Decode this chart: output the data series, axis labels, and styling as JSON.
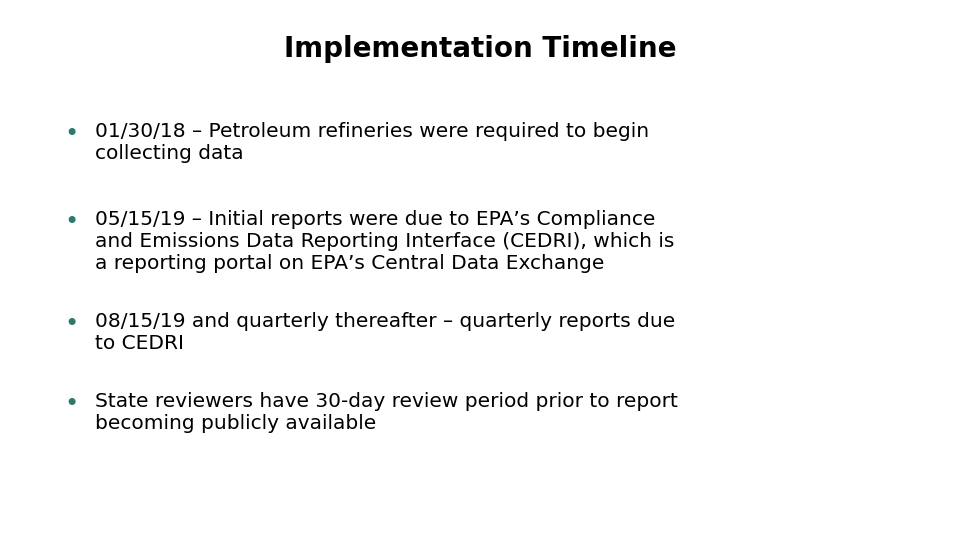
{
  "title": "Implementation Timeline",
  "title_fontsize": 20,
  "title_fontweight": "bold",
  "title_color": "#000000",
  "background_color": "#ffffff",
  "bullet_color": "#2d7a6b",
  "text_color": "#000000",
  "text_fontsize": 14.5,
  "title_font_family": "DejaVu Sans",
  "body_font_family": "DejaVu Sans",
  "bullet_lines": [
    [
      "01/30/18 – Petroleum refineries were required to begin",
      "collecting data"
    ],
    [
      "05/15/19 – Initial reports were due to EPA’s Compliance",
      "and Emissions Data Reporting Interface (CEDRI), which is",
      "a reporting portal on EPA’s Central Data Exchange"
    ],
    [
      "08/15/19 and quarterly thereafter – quarterly reports due",
      "to CEDRI"
    ],
    [
      "State reviewers have 30-day review period prior to report",
      "becoming publicly available"
    ]
  ]
}
